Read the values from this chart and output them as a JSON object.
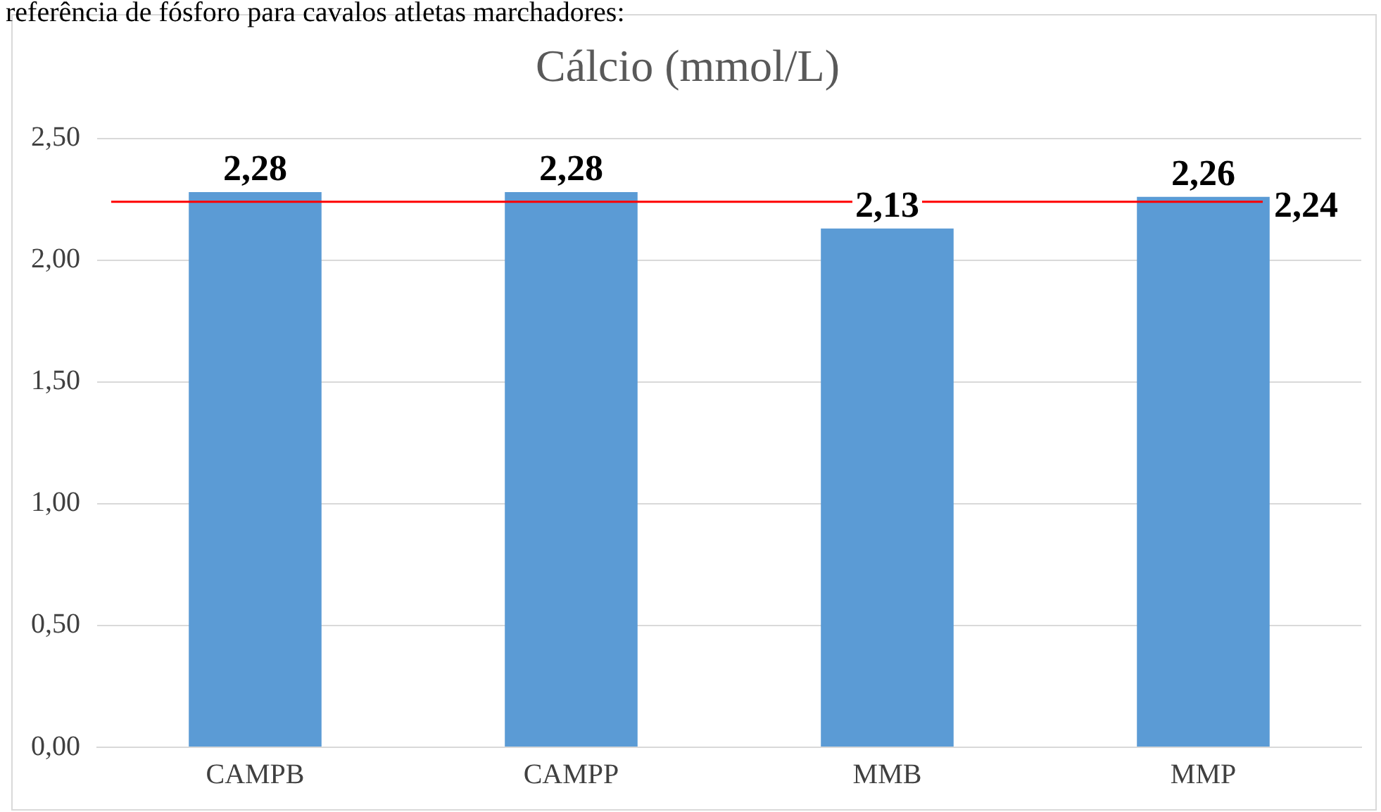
{
  "chart_data": {
    "type": "bar",
    "title": "Cálcio (mmol/L)",
    "categories": [
      "CAMPB",
      "CAMPP",
      "MMB",
      "MMP"
    ],
    "values": [
      2.28,
      2.28,
      2.13,
      2.26
    ],
    "value_labels": [
      "2,28",
      "2,28",
      "2,13",
      "2,26"
    ],
    "color": "#5b9bd5",
    "ylim": [
      0,
      2.5
    ],
    "yticks": [
      {
        "value": 0,
        "label": "0,00"
      },
      {
        "value": 0.5,
        "label": "0,50"
      },
      {
        "value": 1,
        "label": "1,00"
      },
      {
        "value": 1.5,
        "label": "1,50"
      },
      {
        "value": 2,
        "label": "2,00"
      },
      {
        "value": 2.5,
        "label": "2,50"
      }
    ],
    "grid": "y",
    "legend": false,
    "ref_lines": [
      {
        "axis": "y",
        "value": 2.24,
        "label": "2,24",
        "color": "#ff0000"
      }
    ],
    "annotations": [
      "referência de fósforo para cavalos atletas marchadores:"
    ]
  }
}
